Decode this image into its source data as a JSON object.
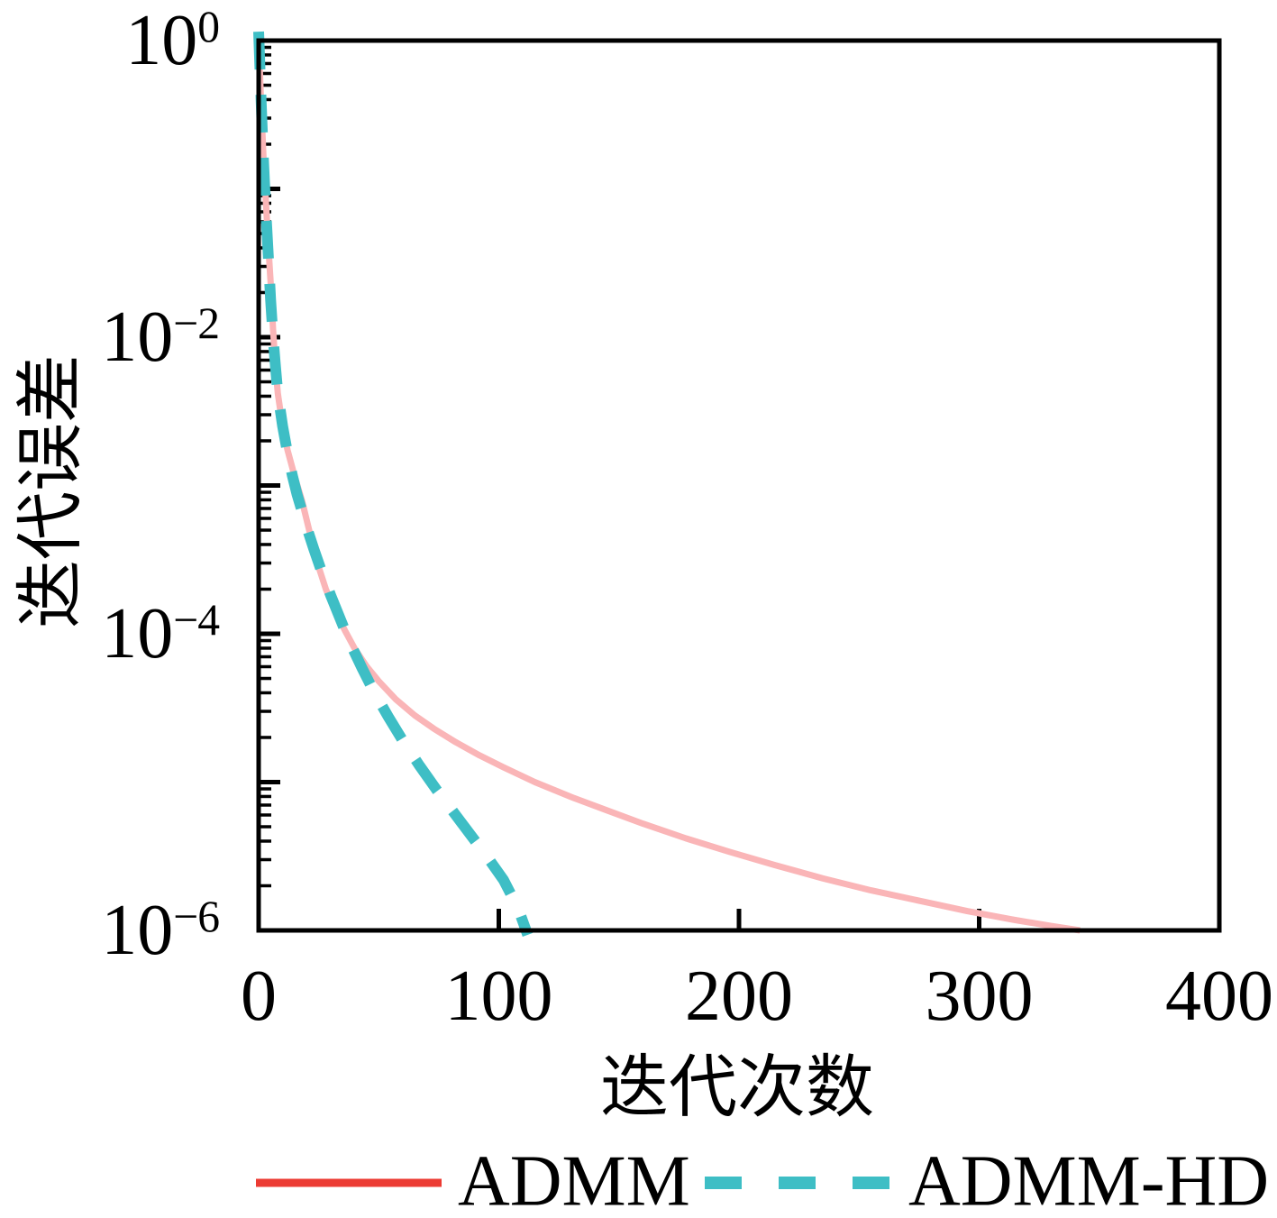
{
  "chart_data": {
    "type": "line",
    "title": "",
    "xlabel": "迭代次数",
    "ylabel": "迭代误差",
    "grid": false,
    "legend_position": "bottom-outside",
    "x_axis": {
      "min": 0,
      "max": 400,
      "ticks": [
        {
          "value": 0,
          "label": "0"
        },
        {
          "value": 100,
          "label": "100"
        },
        {
          "value": 200,
          "label": "200"
        },
        {
          "value": 300,
          "label": "300"
        },
        {
          "value": 400,
          "label": "400"
        }
      ]
    },
    "y_axis": {
      "scale": "log",
      "max_exp": 0,
      "min_exp": -6,
      "ticks": [
        {
          "at_exp": 0,
          "base": "10",
          "exp": "0"
        },
        {
          "at_exp": -2,
          "base": "10",
          "exp": "−2"
        },
        {
          "at_exp": -4,
          "base": "10",
          "exp": "−4"
        },
        {
          "at_exp": -6,
          "base": "10",
          "exp": "−6"
        }
      ]
    },
    "series": [
      {
        "name": "ADMM",
        "style": "solid",
        "color": "#FAB5B7",
        "legend_color": "#EC3B33",
        "points_log10": [
          [
            0,
            0
          ],
          [
            1,
            -0.42
          ],
          [
            2,
            -0.78
          ],
          [
            3,
            -1.08
          ],
          [
            4,
            -1.38
          ],
          [
            5,
            -1.63
          ],
          [
            6,
            -1.95
          ],
          [
            7,
            -2.2
          ],
          [
            8,
            -2.38
          ],
          [
            10,
            -2.6
          ],
          [
            12,
            -2.76
          ],
          [
            15,
            -2.94
          ],
          [
            18,
            -3.1
          ],
          [
            21,
            -3.3
          ],
          [
            24,
            -3.5
          ],
          [
            28,
            -3.7
          ],
          [
            32,
            -3.85
          ],
          [
            36,
            -3.98
          ],
          [
            40,
            -4.1
          ],
          [
            45,
            -4.22
          ],
          [
            50,
            -4.32
          ],
          [
            57,
            -4.44
          ],
          [
            65,
            -4.55
          ],
          [
            73,
            -4.64
          ],
          [
            82,
            -4.73
          ],
          [
            92,
            -4.82
          ],
          [
            102,
            -4.9
          ],
          [
            115,
            -5.0
          ],
          [
            130,
            -5.1
          ],
          [
            145,
            -5.19
          ],
          [
            160,
            -5.28
          ],
          [
            178,
            -5.38
          ],
          [
            196,
            -5.47
          ],
          [
            215,
            -5.56
          ],
          [
            235,
            -5.65
          ],
          [
            255,
            -5.73
          ],
          [
            275,
            -5.8
          ],
          [
            295,
            -5.87
          ],
          [
            315,
            -5.93
          ],
          [
            330,
            -5.97
          ],
          [
            342,
            -6.0
          ]
        ]
      },
      {
        "name": "ADMM-HD",
        "style": "dashed",
        "color": "#3EBEC5",
        "legend_color": "#3EBEC5",
        "points_log10": [
          [
            0,
            0.06
          ],
          [
            1,
            -0.4
          ],
          [
            2,
            -0.8
          ],
          [
            3,
            -1.15
          ],
          [
            4,
            -1.45
          ],
          [
            5,
            -1.75
          ],
          [
            6,
            -2.0
          ],
          [
            7,
            -2.2
          ],
          [
            8,
            -2.38
          ],
          [
            10,
            -2.6
          ],
          [
            12,
            -2.78
          ],
          [
            14,
            -2.93
          ],
          [
            16,
            -3.06
          ],
          [
            18,
            -3.17
          ],
          [
            20,
            -3.28
          ],
          [
            23,
            -3.43
          ],
          [
            26,
            -3.57
          ],
          [
            30,
            -3.74
          ],
          [
            34,
            -3.9
          ],
          [
            38,
            -4.06
          ],
          [
            43,
            -4.23
          ],
          [
            48,
            -4.39
          ],
          [
            54,
            -4.56
          ],
          [
            60,
            -4.72
          ],
          [
            67,
            -4.89
          ],
          [
            74,
            -5.05
          ],
          [
            81,
            -5.2
          ],
          [
            88,
            -5.35
          ],
          [
            95,
            -5.5
          ],
          [
            102,
            -5.66
          ],
          [
            108,
            -5.85
          ],
          [
            112,
            -6.03
          ]
        ]
      }
    ]
  }
}
